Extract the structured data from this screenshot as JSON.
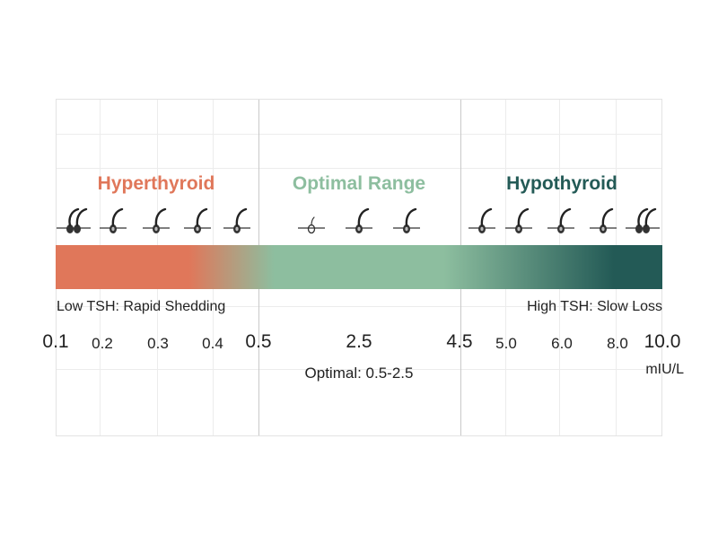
{
  "zones": {
    "hyper": {
      "label": "Hyperthyroid",
      "color": "#e0775a"
    },
    "optimal": {
      "label": "Optimal Range",
      "color": "#8dbe9f"
    },
    "hypo": {
      "label": "Hypothyroid",
      "color": "#235a56"
    }
  },
  "bar_labels": {
    "left": "Low TSH: Rapid Shedding",
    "right": "High TSH: Slow Loss"
  },
  "ticks": [
    "0.1",
    "0.2",
    "0.3",
    "0.4",
    "0.5",
    "2.5",
    "4.5",
    "5.0",
    "6.0",
    "8.0",
    "10.0"
  ],
  "optimal_note": "Optimal: 0.5-2.5",
  "unit": "mIU/L",
  "icons": {
    "follicle": "hair-follicle-icon",
    "thin_follicle": "thin-hair-follicle-icon"
  }
}
